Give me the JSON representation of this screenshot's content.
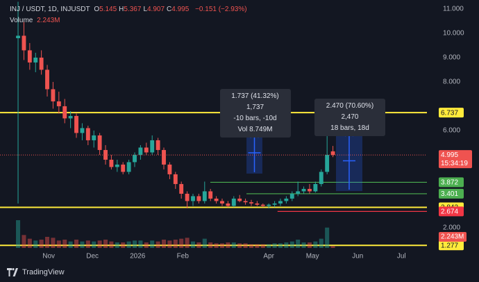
{
  "chart_data": {
    "type": "candlestick",
    "title": "INJ / USDT, 1D, INJUSDT",
    "ohlc_legend": [
      {
        "key": "O",
        "value": "5.145"
      },
      {
        "key": "H",
        "value": "5.367"
      },
      {
        "key": "L",
        "value": "4.907"
      },
      {
        "key": "C",
        "value": "4.995"
      }
    ],
    "change": "−0.151 (−2.93%)",
    "volume_title": "Volume",
    "volume_label": "2.243M",
    "countdown": "15:34:19",
    "up_color": "#26a69a",
    "down_color": "#ef5350",
    "xlim": [
      -2.4,
      290.5
    ],
    "xticks": [
      {
        "value": 31,
        "label": "Nov"
      },
      {
        "value": 61,
        "label": "Dec"
      },
      {
        "value": 92,
        "label": "2026"
      },
      {
        "value": 123,
        "label": "Feb"
      },
      {
        "value": 182,
        "label": "Apr"
      },
      {
        "value": 212,
        "label": "May"
      },
      {
        "value": 243,
        "label": "Jun"
      },
      {
        "value": 273,
        "label": "Jul"
      }
    ],
    "ylim": [
      1.17,
      11.37
    ],
    "yticks": [
      {
        "value": 11,
        "label": "11.000"
      },
      {
        "value": 10,
        "label": "10.000"
      },
      {
        "value": 9,
        "label": "9.000"
      },
      {
        "value": 8,
        "label": "8.000"
      },
      {
        "value": 6,
        "label": "6.000"
      },
      {
        "value": 2,
        "label": "2.000"
      }
    ],
    "grid": false,
    "x": [
      10,
      14,
      18,
      22,
      26,
      30,
      34,
      38,
      42,
      46,
      50,
      54,
      58,
      62,
      66,
      70,
      74,
      78,
      82,
      86,
      90,
      94,
      98,
      102,
      106,
      110,
      114,
      118,
      122,
      126,
      130,
      134,
      138,
      142,
      146,
      150,
      154,
      158,
      162,
      166,
      170,
      174,
      178,
      182,
      186,
      190,
      194,
      198,
      202,
      206,
      210,
      214,
      218,
      222,
      226
    ],
    "ohlc": [
      [
        9.8,
        11.3,
        3.0,
        9.9
      ],
      [
        9.9,
        10.5,
        8.9,
        9.3
      ],
      [
        9.3,
        9.6,
        8.5,
        8.8
      ],
      [
        8.8,
        9.2,
        8.4,
        9.0
      ],
      [
        9.0,
        9.3,
        8.3,
        8.5
      ],
      [
        8.5,
        8.7,
        7.4,
        7.7
      ],
      [
        7.7,
        8.0,
        6.9,
        7.2
      ],
      [
        7.2,
        7.6,
        6.7,
        7.0
      ],
      [
        7.0,
        7.3,
        6.3,
        6.5
      ],
      [
        6.5,
        6.8,
        6.1,
        6.6
      ],
      [
        6.6,
        6.7,
        5.7,
        5.9
      ],
      [
        5.9,
        6.3,
        5.6,
        6.1
      ],
      [
        6.1,
        6.2,
        5.4,
        5.6
      ],
      [
        5.6,
        6.0,
        5.3,
        5.8
      ],
      [
        5.8,
        5.9,
        5.0,
        5.2
      ],
      [
        5.2,
        5.4,
        4.6,
        4.8
      ],
      [
        4.8,
        5.0,
        4.4,
        4.5
      ],
      [
        4.5,
        4.8,
        4.3,
        4.6
      ],
      [
        4.6,
        4.7,
        4.2,
        4.3
      ],
      [
        4.3,
        4.8,
        4.2,
        4.7
      ],
      [
        4.7,
        5.1,
        4.5,
        5.0
      ],
      [
        5.0,
        5.4,
        4.8,
        5.3
      ],
      [
        5.3,
        5.5,
        5.0,
        5.1
      ],
      [
        5.1,
        5.8,
        5.0,
        5.6
      ],
      [
        5.6,
        5.7,
        5.0,
        5.2
      ],
      [
        5.2,
        5.3,
        4.4,
        4.6
      ],
      [
        4.6,
        4.7,
        4.0,
        4.2
      ],
      [
        4.2,
        4.3,
        3.6,
        3.8
      ],
      [
        3.8,
        3.9,
        3.2,
        3.4
      ],
      [
        3.4,
        3.5,
        2.8,
        3.1
      ],
      [
        3.1,
        3.4,
        2.9,
        3.3
      ],
      [
        3.3,
        3.4,
        3.0,
        3.1
      ],
      [
        3.1,
        3.9,
        3.0,
        3.5
      ],
      [
        3.5,
        3.6,
        3.1,
        3.2
      ],
      [
        3.2,
        3.3,
        3.0,
        3.1
      ],
      [
        3.1,
        3.2,
        2.9,
        3.0
      ],
      [
        3.0,
        3.1,
        2.85,
        2.9
      ],
      [
        2.9,
        3.3,
        2.85,
        3.2
      ],
      [
        3.2,
        3.35,
        3.05,
        3.1
      ],
      [
        3.1,
        3.2,
        2.95,
        3.05
      ],
      [
        3.05,
        3.15,
        2.9,
        3.0
      ],
      [
        3.0,
        3.1,
        2.9,
        2.95
      ],
      [
        2.95,
        3.0,
        2.85,
        2.9
      ],
      [
        2.9,
        3.0,
        2.8,
        2.95
      ],
      [
        2.95,
        3.1,
        2.85,
        3.0
      ],
      [
        3.0,
        3.2,
        2.9,
        3.1
      ],
      [
        3.1,
        3.3,
        3.0,
        3.2
      ],
      [
        3.2,
        3.5,
        3.1,
        3.4
      ],
      [
        3.4,
        3.9,
        3.3,
        3.5
      ],
      [
        3.5,
        3.7,
        3.4,
        3.6
      ],
      [
        3.6,
        3.8,
        3.4,
        3.5
      ],
      [
        3.5,
        3.9,
        3.45,
        3.8
      ],
      [
        3.8,
        4.4,
        3.7,
        4.3
      ],
      [
        4.3,
        6.1,
        4.2,
        5.0
      ],
      [
        5.145,
        5.367,
        4.907,
        4.995
      ]
    ],
    "volumes": [
      30,
      14,
      10,
      8,
      9,
      12,
      11,
      8,
      9,
      7,
      9,
      7,
      8,
      7,
      8,
      9,
      7,
      6,
      6,
      7,
      8,
      8,
      6,
      8,
      7,
      9,
      8,
      9,
      10,
      11,
      7,
      6,
      10,
      6,
      5,
      5,
      6,
      6,
      5,
      5,
      4,
      4,
      4,
      4,
      5,
      5,
      6,
      7,
      9,
      6,
      6,
      7,
      10,
      22,
      2.243
    ],
    "hlines": [
      {
        "value": 6.737,
        "color": "#ffeb3b"
      },
      {
        "value": 2.842,
        "color": "#ffeb3b"
      },
      {
        "value": 1.277,
        "color": "#ffeb3b"
      },
      {
        "value": 3.872,
        "color": "#4caf50",
        "start": 141.9
      },
      {
        "value": 3.401,
        "color": "#4caf50",
        "start": 166.7
      },
      {
        "value": 2.674,
        "color": "#f23645",
        "start": 188
      }
    ],
    "measures": [
      {
        "lines": [
          "1.737 (41.32%) 1,737",
          "-10 bars, -10d",
          "Vol 8.749M"
        ],
        "price_range": [
          4.23,
          5.94
        ],
        "day_range": [
          166.7,
          177.6
        ]
      },
      {
        "lines": [
          "2.470 (70.60%) 2,470",
          "18 bars, 18d"
        ],
        "price_range": [
          3.51,
          6.0
        ],
        "day_range": [
          228.1,
          246.2
        ]
      }
    ],
    "brand": "TradingView"
  }
}
